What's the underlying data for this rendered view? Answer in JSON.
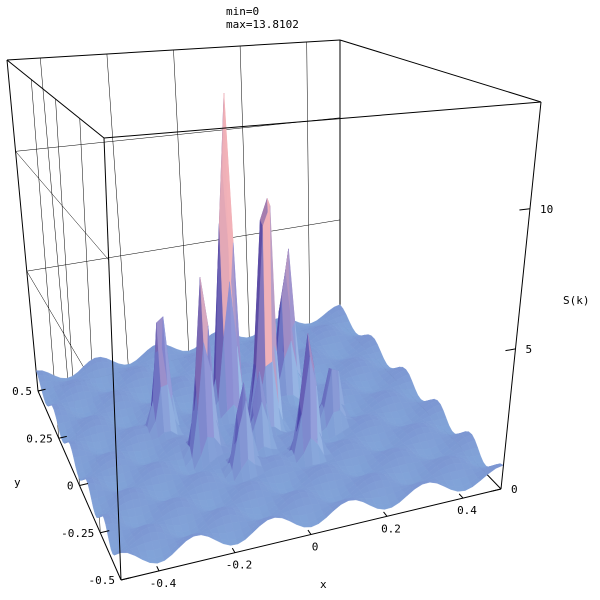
{
  "chart_data": {
    "type": "surface3d",
    "annotations": {
      "min": "min=0",
      "max": "max=13.8102"
    },
    "xlabel": "x",
    "ylabel": "y",
    "zlabel": "S(k)",
    "xlim": [
      -0.5,
      0.5
    ],
    "ylim": [
      -0.5,
      0.5
    ],
    "zlim": [
      0,
      13.8102
    ],
    "x_ticks": [
      {
        "value": -0.4,
        "label": "-0.4"
      },
      {
        "value": -0.2,
        "label": "-0.2"
      },
      {
        "value": 0,
        "label": "0"
      },
      {
        "value": 0.2,
        "label": "0.2"
      },
      {
        "value": 0.4,
        "label": "0.4"
      }
    ],
    "y_ticks": [
      {
        "value": 0.5,
        "label": "0.5"
      },
      {
        "value": 0.25,
        "label": "0.25"
      },
      {
        "value": 0,
        "label": "0"
      },
      {
        "value": -0.25,
        "label": "-0.25"
      },
      {
        "value": -0.5,
        "label": "-0.5"
      }
    ],
    "z_ticks": [
      {
        "value": 0,
        "label": "0"
      },
      {
        "value": 5,
        "label": "5"
      },
      {
        "value": 10,
        "label": "10"
      }
    ],
    "peaks": [
      {
        "x": -0.02,
        "y": 0.12,
        "z": 13.8
      },
      {
        "x": 0.05,
        "y": 0.01,
        "z": 11.5
      },
      {
        "x": -0.15,
        "y": -0.06,
        "z": 7.2
      },
      {
        "x": 0.17,
        "y": 0.16,
        "z": 6.8
      },
      {
        "x": -0.22,
        "y": 0.1,
        "z": 5.8
      },
      {
        "x": 0.1,
        "y": -0.18,
        "z": 5.6
      },
      {
        "x": -0.08,
        "y": -0.18,
        "z": 4.0
      },
      {
        "x": 0.0,
        "y": -0.08,
        "z": 3.5
      },
      {
        "x": 0.22,
        "y": -0.05,
        "z": 3.2
      }
    ],
    "background_level": 1.0,
    "colors": {
      "low": "#a8e4f8",
      "mid": "#8f8fd4",
      "high": "#f2b2b8",
      "shadow": "#3a35a0"
    },
    "grid": true
  }
}
